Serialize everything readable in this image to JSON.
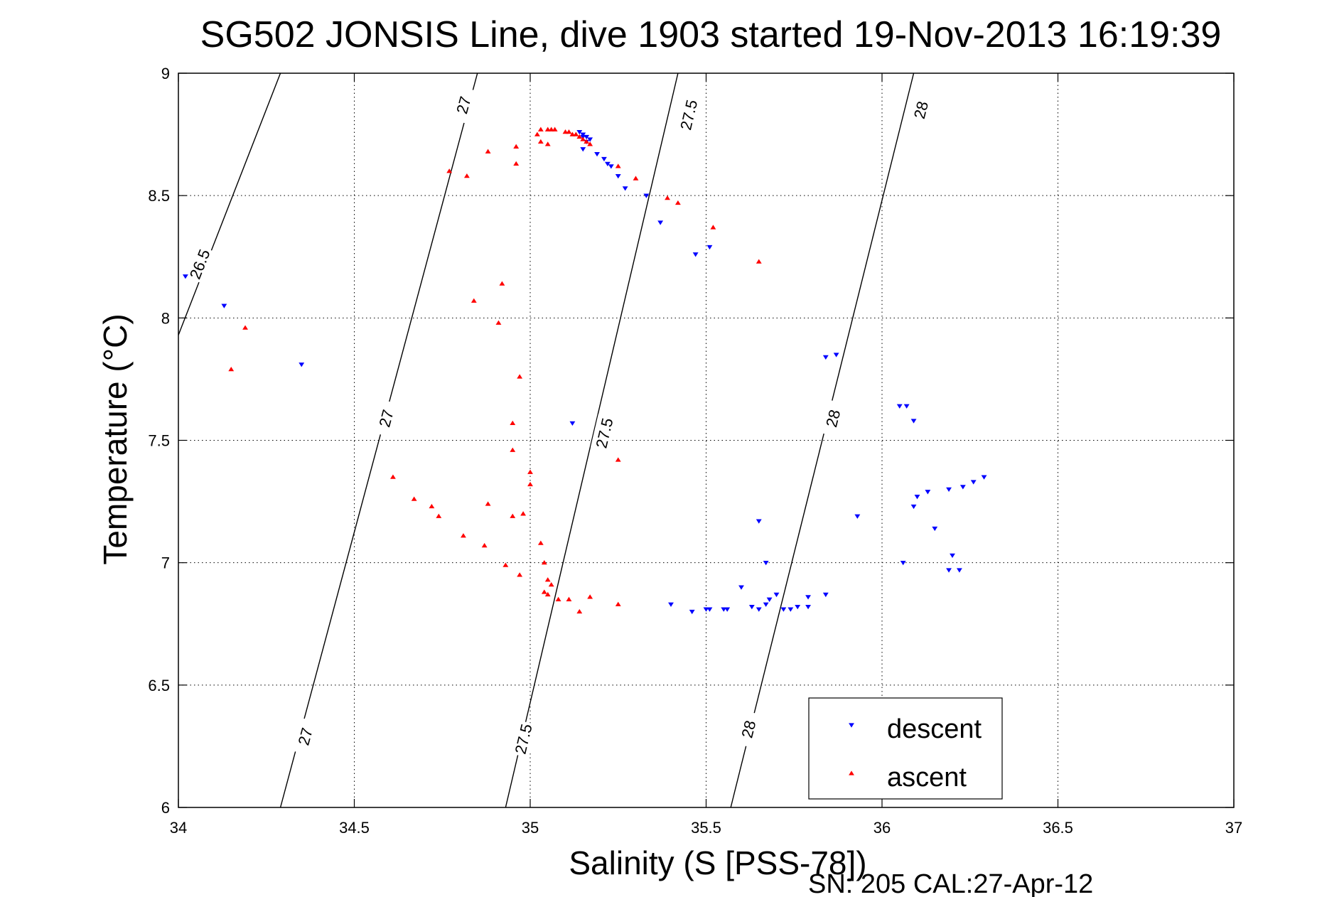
{
  "chart_data": {
    "type": "scatter",
    "title": "SG502 JONSIS Line, dive 1903 started 19-Nov-2013 16:19:39",
    "xlabel": "Salinity (S [PSS-78])",
    "ylabel": "Temperature (°C)",
    "xlim": [
      34,
      37
    ],
    "ylim": [
      6,
      9
    ],
    "xticks": [
      "34",
      "34.5",
      "35",
      "35.5",
      "36",
      "36.5",
      "37"
    ],
    "yticks": [
      "6",
      "6.5",
      "7",
      "7.5",
      "8",
      "8.5",
      "9"
    ],
    "grid": true,
    "legend_position": "bottom-right",
    "footer": "SN: 205  CAL:27-Apr-12",
    "isopycnals": [
      {
        "label": "26.5",
        "points": [
          [
            34.29,
            9.0
          ],
          [
            34.0,
            7.93
          ]
        ],
        "label_at": [
          [
            34.06,
            8.22
          ]
        ]
      },
      {
        "label": "27",
        "points": [
          [
            34.85,
            9.0
          ],
          [
            34.29,
            6.0
          ]
        ],
        "label_at": [
          [
            34.81,
            8.87
          ],
          [
            34.59,
            7.59
          ],
          [
            34.36,
            6.29
          ]
        ]
      },
      {
        "label": "27.5",
        "points": [
          [
            35.42,
            9.0
          ],
          [
            34.93,
            6.0
          ]
        ],
        "label_at": [
          [
            35.45,
            8.83
          ],
          [
            35.21,
            7.53
          ],
          [
            34.98,
            6.28
          ]
        ]
      },
      {
        "label": "28",
        "points": [
          [
            36.09,
            9.0
          ],
          [
            35.57,
            6.0
          ]
        ],
        "label_at": [
          [
            36.11,
            8.85
          ],
          [
            35.86,
            7.59
          ],
          [
            35.62,
            6.32
          ]
        ]
      }
    ],
    "series": [
      {
        "name": "descent",
        "color": "#0000ff",
        "marker": "triangle-down",
        "points": [
          [
            34.02,
            8.17
          ],
          [
            34.13,
            8.05
          ],
          [
            34.35,
            7.81
          ],
          [
            35.12,
            7.57
          ],
          [
            35.14,
            8.76
          ],
          [
            35.15,
            8.75
          ],
          [
            35.15,
            8.74
          ],
          [
            35.16,
            8.74
          ],
          [
            35.17,
            8.73
          ],
          [
            35.16,
            8.72
          ],
          [
            35.15,
            8.69
          ],
          [
            35.19,
            8.67
          ],
          [
            35.21,
            8.65
          ],
          [
            35.22,
            8.63
          ],
          [
            35.23,
            8.62
          ],
          [
            35.25,
            8.58
          ],
          [
            35.27,
            8.53
          ],
          [
            35.33,
            8.5
          ],
          [
            35.37,
            8.39
          ],
          [
            35.47,
            8.26
          ],
          [
            35.51,
            8.29
          ],
          [
            35.84,
            7.84
          ],
          [
            35.87,
            7.85
          ],
          [
            36.05,
            7.64
          ],
          [
            36.07,
            7.64
          ],
          [
            36.09,
            7.58
          ],
          [
            36.29,
            7.35
          ],
          [
            36.26,
            7.33
          ],
          [
            36.23,
            7.31
          ],
          [
            36.19,
            7.3
          ],
          [
            36.13,
            7.29
          ],
          [
            36.1,
            7.27
          ],
          [
            36.09,
            7.23
          ],
          [
            36.15,
            7.14
          ],
          [
            36.2,
            7.03
          ],
          [
            36.19,
            6.97
          ],
          [
            36.22,
            6.97
          ],
          [
            36.06,
            7.0
          ],
          [
            35.93,
            7.19
          ],
          [
            35.65,
            7.17
          ],
          [
            35.67,
            7.0
          ],
          [
            35.84,
            6.87
          ],
          [
            35.79,
            6.86
          ],
          [
            35.79,
            6.82
          ],
          [
            35.76,
            6.82
          ],
          [
            35.74,
            6.81
          ],
          [
            35.72,
            6.81
          ],
          [
            35.7,
            6.87
          ],
          [
            35.68,
            6.85
          ],
          [
            35.67,
            6.83
          ],
          [
            35.65,
            6.81
          ],
          [
            35.63,
            6.82
          ],
          [
            35.6,
            6.9
          ],
          [
            35.56,
            6.81
          ],
          [
            35.55,
            6.81
          ],
          [
            35.51,
            6.81
          ],
          [
            35.5,
            6.81
          ],
          [
            35.46,
            6.8
          ],
          [
            35.4,
            6.83
          ]
        ]
      },
      {
        "name": "ascent",
        "color": "#ff0000",
        "marker": "triangle-up",
        "points": [
          [
            35.1,
            8.76
          ],
          [
            35.11,
            8.76
          ],
          [
            35.12,
            8.75
          ],
          [
            35.13,
            8.75
          ],
          [
            35.14,
            8.74
          ],
          [
            35.15,
            8.73
          ],
          [
            35.16,
            8.72
          ],
          [
            35.17,
            8.71
          ],
          [
            35.07,
            8.77
          ],
          [
            35.06,
            8.77
          ],
          [
            35.05,
            8.77
          ],
          [
            35.03,
            8.77
          ],
          [
            35.02,
            8.75
          ],
          [
            35.03,
            8.72
          ],
          [
            35.05,
            8.71
          ],
          [
            34.96,
            8.7
          ],
          [
            34.96,
            8.63
          ],
          [
            34.88,
            8.68
          ],
          [
            34.82,
            8.58
          ],
          [
            34.77,
            8.6
          ],
          [
            35.25,
            8.62
          ],
          [
            35.3,
            8.57
          ],
          [
            35.39,
            8.49
          ],
          [
            35.42,
            8.47
          ],
          [
            35.52,
            8.37
          ],
          [
            35.65,
            8.23
          ],
          [
            34.19,
            7.96
          ],
          [
            34.15,
            7.79
          ],
          [
            34.84,
            8.07
          ],
          [
            34.92,
            8.14
          ],
          [
            34.91,
            7.98
          ],
          [
            34.97,
            7.76
          ],
          [
            34.95,
            7.57
          ],
          [
            34.95,
            7.46
          ],
          [
            35.0,
            7.37
          ],
          [
            35.0,
            7.32
          ],
          [
            34.98,
            7.2
          ],
          [
            34.95,
            7.19
          ],
          [
            34.61,
            7.35
          ],
          [
            34.67,
            7.26
          ],
          [
            34.72,
            7.23
          ],
          [
            34.74,
            7.19
          ],
          [
            34.88,
            7.24
          ],
          [
            34.81,
            7.11
          ],
          [
            34.87,
            7.07
          ],
          [
            34.93,
            6.99
          ],
          [
            34.97,
            6.95
          ],
          [
            35.03,
            7.08
          ],
          [
            35.04,
            7.0
          ],
          [
            35.05,
            6.93
          ],
          [
            35.06,
            6.91
          ],
          [
            35.04,
            6.88
          ],
          [
            35.05,
            6.87
          ],
          [
            35.08,
            6.85
          ],
          [
            35.11,
            6.85
          ],
          [
            35.14,
            6.8
          ],
          [
            35.17,
            6.86
          ],
          [
            35.25,
            6.83
          ],
          [
            35.25,
            7.42
          ]
        ]
      }
    ]
  }
}
